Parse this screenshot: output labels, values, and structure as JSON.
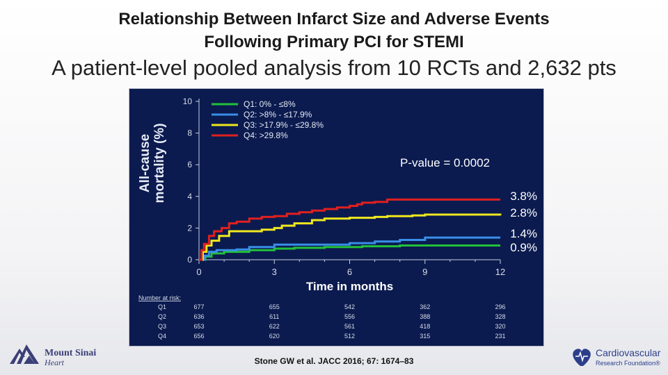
{
  "header": {
    "title_line1": "Relationship Between Infarct Size and Adverse Events",
    "title_line2": "Following Primary PCI for STEMI",
    "subtitle": "A patient-level pooled analysis from 10 RCTs and 2,632 pts"
  },
  "chart_data": {
    "type": "line",
    "title": "",
    "ylabel_line1": "All-cause",
    "ylabel_line2": "mortality (%)",
    "xlabel": "Time in months",
    "xlim": [
      0,
      12
    ],
    "ylim": [
      0,
      10
    ],
    "xticks": [
      0,
      3,
      6,
      9,
      12
    ],
    "yticks": [
      0,
      2,
      4,
      6,
      8,
      10
    ],
    "grid": false,
    "pvalue_text": "P-value = 0.0002",
    "series": [
      {
        "name": "Q1: 0% - ≤8%",
        "color": "#23c23a",
        "x": [
          0,
          0.25,
          0.5,
          1.0,
          2.0,
          3.0,
          3.8,
          5.0,
          6.5,
          8.0,
          9.5,
          12
        ],
        "y": [
          0,
          0.2,
          0.4,
          0.5,
          0.6,
          0.7,
          0.75,
          0.8,
          0.85,
          0.9,
          0.9,
          0.9
        ]
      },
      {
        "name": "Q2: >8% - ≤17.9%",
        "color": "#3a8fe8",
        "x": [
          0,
          0.2,
          0.4,
          0.7,
          1.5,
          2.0,
          3.0,
          5.0,
          6.0,
          6.5,
          7.0,
          8.0,
          9.0,
          12
        ],
        "y": [
          0,
          0.25,
          0.5,
          0.6,
          0.65,
          0.8,
          0.95,
          0.95,
          1.05,
          1.05,
          1.15,
          1.25,
          1.4,
          1.4
        ]
      },
      {
        "name": "Q3: >17.9% - ≤29.8%",
        "color": "#f0e81e",
        "x": [
          0,
          0.15,
          0.3,
          0.5,
          0.8,
          1.2,
          2.0,
          2.5,
          3.0,
          3.3,
          3.8,
          4.5,
          5.0,
          6.0,
          7.0,
          7.5,
          8.5,
          9.0,
          12
        ],
        "y": [
          0,
          0.5,
          0.9,
          1.2,
          1.5,
          1.8,
          1.8,
          1.9,
          2.0,
          2.15,
          2.3,
          2.5,
          2.6,
          2.65,
          2.7,
          2.75,
          2.8,
          2.85,
          2.8
        ]
      },
      {
        "name": "Q4: >29.8%",
        "color": "#e0201f",
        "x": [
          0,
          0.1,
          0.2,
          0.4,
          0.6,
          0.9,
          1.2,
          1.5,
          2.0,
          2.5,
          3.0,
          3.5,
          4.0,
          4.5,
          5.0,
          5.5,
          6.0,
          6.3,
          6.5,
          7.0,
          7.5,
          12
        ],
        "y": [
          0,
          0.6,
          1.0,
          1.5,
          1.8,
          2.0,
          2.3,
          2.4,
          2.6,
          2.7,
          2.75,
          2.9,
          3.0,
          3.1,
          3.2,
          3.3,
          3.4,
          3.5,
          3.6,
          3.65,
          3.8,
          3.8
        ]
      }
    ],
    "end_labels": [
      "3.8%",
      "2.8%",
      "1.4%",
      "0.9%"
    ],
    "number_at_risk": {
      "label": "Number at risk:",
      "rows": [
        {
          "group": "Q1",
          "values": [
            "677",
            "655",
            "542",
            "362",
            "296"
          ]
        },
        {
          "group": "Q2",
          "values": [
            "636",
            "611",
            "556",
            "388",
            "328"
          ]
        },
        {
          "group": "Q3",
          "values": [
            "653",
            "622",
            "561",
            "418",
            "320"
          ]
        },
        {
          "group": "Q4",
          "values": [
            "656",
            "620",
            "512",
            "315",
            "231"
          ]
        }
      ]
    }
  },
  "logos": {
    "left_line1": "Mount Sinai",
    "left_line2": "Heart",
    "right_line1": "Cardiovascular",
    "right_line2": "Research Foundation®"
  },
  "citation": "Stone GW et al. JACC 2016; 67: 1674–83"
}
